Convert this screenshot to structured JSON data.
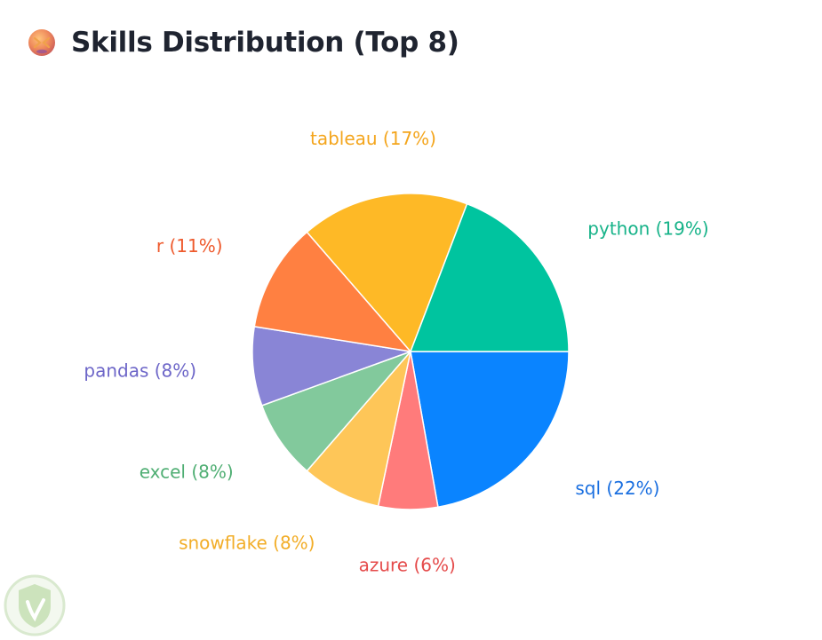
{
  "header": {
    "title": "Skills Distribution (Top 8)",
    "icon": "mask-icon"
  },
  "watermark": {
    "icon": "shield-logo-icon"
  },
  "chart_data": {
    "type": "pie",
    "title": "Skills Distribution (Top 8)",
    "start": "3 o'clock, clockwise",
    "slices": [
      {
        "label": "sql",
        "value": 22,
        "display": "sql (22%)",
        "color": "#0a84ff",
        "text_color": "#1a6fe0"
      },
      {
        "label": "azure",
        "value": 6,
        "display": "azure (6%)",
        "color": "#ff7b7b",
        "text_color": "#e54b4b"
      },
      {
        "label": "snowflake",
        "value": 8,
        "display": "snowflake (8%)",
        "color": "#fec658",
        "text_color": "#f2ad27"
      },
      {
        "label": "excel",
        "value": 8,
        "display": "excel (8%)",
        "color": "#82c99c",
        "text_color": "#4fae73"
      },
      {
        "label": "pandas",
        "value": 8,
        "display": "pandas (8%)",
        "color": "#8985d6",
        "text_color": "#6d66c8"
      },
      {
        "label": "r",
        "value": 11,
        "display": "r (11%)",
        "color": "#ff8041",
        "text_color": "#ee5a2d"
      },
      {
        "label": "tableau",
        "value": 17,
        "display": "tableau (17%)",
        "color": "#feb926",
        "text_color": "#f4a51c"
      },
      {
        "label": "python",
        "value": 19,
        "display": "python (19%)",
        "color": "#00c49f",
        "text_color": "#17b389"
      }
    ]
  }
}
